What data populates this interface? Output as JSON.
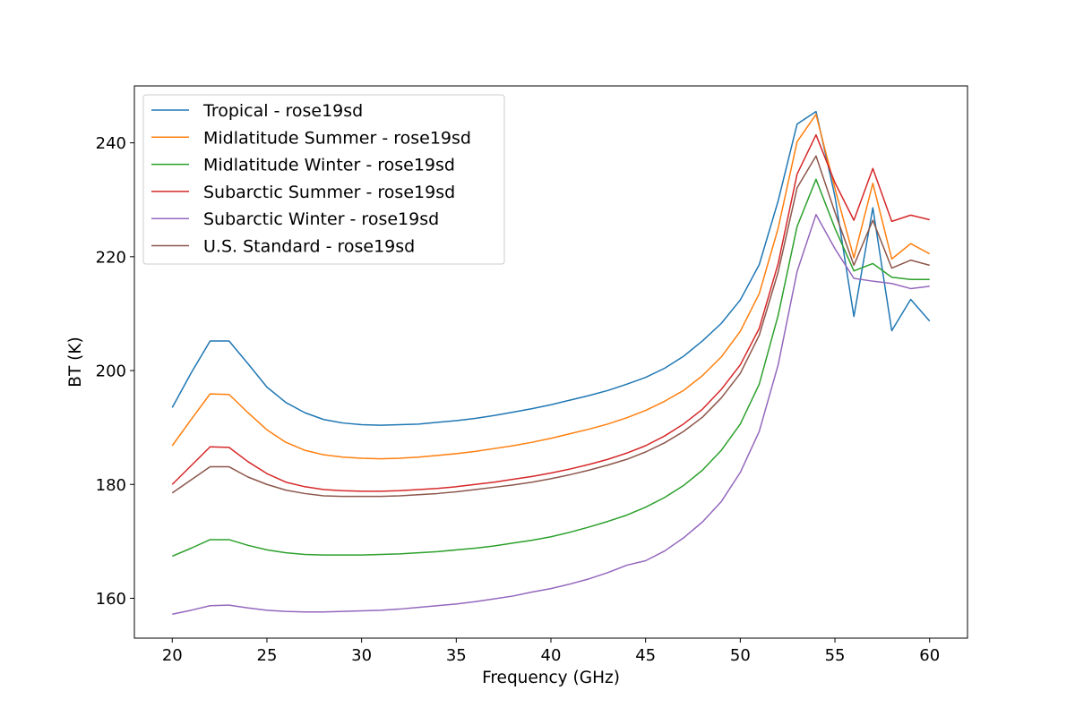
{
  "chart_data": {
    "type": "line",
    "xlabel": "Frequency (GHz)",
    "ylabel": "BT (K)",
    "xlim": [
      18,
      62
    ],
    "ylim": [
      153,
      250
    ],
    "xticks": [
      20,
      25,
      30,
      35,
      40,
      45,
      50,
      55,
      60
    ],
    "yticks": [
      160,
      180,
      200,
      220,
      240
    ],
    "grid": false,
    "legend_placement": "upper-left",
    "x": [
      20,
      21,
      22,
      23,
      24,
      25,
      26,
      27,
      28,
      29,
      30,
      31,
      32,
      33,
      34,
      35,
      36,
      37,
      38,
      39,
      40,
      41,
      42,
      43,
      44,
      45,
      46,
      47,
      48,
      49,
      50,
      51,
      52,
      53,
      54,
      55,
      56,
      57,
      58,
      59,
      60
    ],
    "series": [
      {
        "name": "Tropical - rose19sd",
        "color": "#1f77b4",
        "values": [
          193.5,
          199.6,
          205.2,
          205.2,
          201.2,
          197.1,
          194.4,
          192.6,
          191.4,
          190.8,
          190.5,
          190.4,
          190.5,
          190.6,
          190.9,
          191.2,
          191.6,
          192.1,
          192.7,
          193.3,
          194.0,
          194.8,
          195.6,
          196.5,
          197.6,
          198.8,
          200.4,
          202.5,
          205.2,
          208.3,
          212.4,
          218.6,
          229.8,
          243.3,
          245.5,
          230.6,
          209.5,
          228.6,
          207.0,
          212.5,
          208.7
        ]
      },
      {
        "name": "Midlatitude Summer - rose19sd",
        "color": "#ff7f0e",
        "values": [
          186.8,
          191.4,
          195.9,
          195.8,
          192.6,
          189.6,
          187.4,
          186.0,
          185.2,
          184.8,
          184.6,
          184.5,
          184.6,
          184.8,
          185.1,
          185.4,
          185.8,
          186.3,
          186.8,
          187.4,
          188.1,
          188.9,
          189.7,
          190.6,
          191.7,
          193.0,
          194.6,
          196.5,
          199.1,
          202.4,
          206.9,
          213.5,
          225.0,
          240.2,
          245.0,
          232.0,
          219.8,
          232.9,
          219.6,
          222.3,
          220.5
        ]
      },
      {
        "name": "Midlatitude Winter - rose19sd",
        "color": "#2ca02c",
        "values": [
          167.4,
          168.8,
          170.3,
          170.3,
          169.3,
          168.5,
          168.0,
          167.7,
          167.6,
          167.6,
          167.6,
          167.7,
          167.8,
          168.0,
          168.2,
          168.5,
          168.8,
          169.2,
          169.7,
          170.2,
          170.8,
          171.6,
          172.5,
          173.5,
          174.6,
          176.0,
          177.7,
          179.8,
          182.5,
          186.0,
          190.6,
          197.6,
          209.7,
          225.3,
          233.6,
          225.0,
          217.5,
          218.8,
          216.4,
          216.0,
          216.0
        ]
      },
      {
        "name": "Subarctic Summer - rose19sd",
        "color": "#d62728",
        "values": [
          180.0,
          183.3,
          186.6,
          186.5,
          184.0,
          181.9,
          180.4,
          179.6,
          179.1,
          178.9,
          178.8,
          178.8,
          178.9,
          179.1,
          179.3,
          179.6,
          180.0,
          180.4,
          180.9,
          181.4,
          182.0,
          182.7,
          183.5,
          184.4,
          185.5,
          186.8,
          188.5,
          190.6,
          193.2,
          196.7,
          201.0,
          207.4,
          218.8,
          234.5,
          241.4,
          233.0,
          226.4,
          235.5,
          226.2,
          227.3,
          226.5
        ]
      },
      {
        "name": "Subarctic Winter - rose19sd",
        "color": "#9467bd",
        "values": [
          157.2,
          157.9,
          158.7,
          158.8,
          158.3,
          157.9,
          157.7,
          157.6,
          157.6,
          157.7,
          157.8,
          157.9,
          158.1,
          158.4,
          158.7,
          159.0,
          159.4,
          159.9,
          160.4,
          161.1,
          161.7,
          162.5,
          163.4,
          164.5,
          165.8,
          166.6,
          168.3,
          170.6,
          173.4,
          177.0,
          182.1,
          189.3,
          201.0,
          217.4,
          227.4,
          221.4,
          216.2,
          215.7,
          215.3,
          214.4,
          214.8
        ]
      },
      {
        "name": "U.S. Standard - rose19sd",
        "color": "#8c564b",
        "values": [
          178.5,
          180.8,
          183.1,
          183.1,
          181.3,
          180.0,
          179.0,
          178.4,
          178.0,
          177.9,
          177.9,
          177.9,
          178.0,
          178.2,
          178.4,
          178.7,
          179.1,
          179.5,
          179.9,
          180.4,
          181.0,
          181.7,
          182.5,
          183.4,
          184.4,
          185.7,
          187.3,
          189.3,
          191.8,
          195.2,
          199.5,
          206.2,
          217.3,
          232.1,
          237.7,
          227.8,
          218.5,
          226.4,
          218.0,
          219.4,
          218.5
        ]
      }
    ]
  }
}
